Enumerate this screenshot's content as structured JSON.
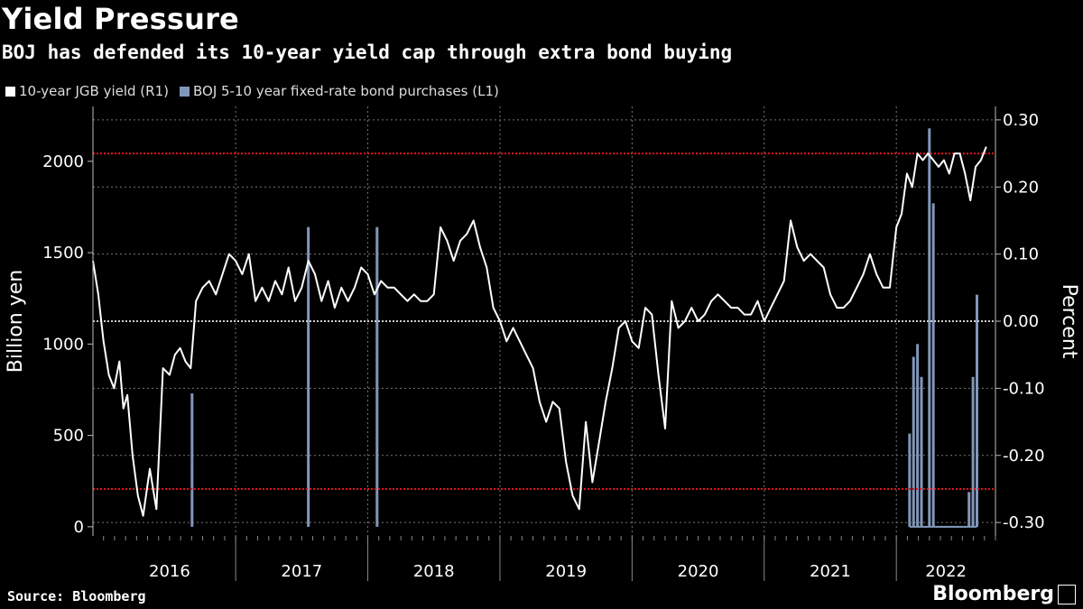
{
  "header": {
    "title": "Yield Pressure",
    "subtitle": "BOJ has defended its 10-year yield cap through extra bond buying"
  },
  "footer": {
    "source": "Source: Bloomberg",
    "brand": "Bloomberg"
  },
  "colors": {
    "background": "#000000",
    "yield_line": "#ffffff",
    "purchases_bar": "#8197b9",
    "cap_line": "#e0141e",
    "grid": "#777777"
  },
  "chart_data": {
    "type": "line",
    "legend_placement": "top-left",
    "grid": true,
    "xlabels": [
      "2016",
      "2017",
      "2018",
      "2019",
      "2020",
      "2021",
      "2022"
    ],
    "left_axis": {
      "label": "Billion yen",
      "ticks": [
        0,
        500,
        1000,
        1500,
        2000
      ],
      "range": [
        -50,
        2300
      ]
    },
    "right_axis": {
      "label": "Percent",
      "ticks": [
        "0.30",
        "0.20",
        "0.10",
        "0.00",
        "-0.10",
        "-0.20",
        "-0.30"
      ],
      "range": [
        -0.32,
        0.32
      ]
    },
    "reference_lines": [
      0.25,
      -0.25
    ],
    "series": [
      {
        "name": "10-year JGB yield (R1)",
        "axis": "right",
        "x": [
          2015.92,
          2015.96,
          2016.0,
          2016.04,
          2016.08,
          2016.12,
          2016.15,
          2016.18,
          2016.22,
          2016.26,
          2016.3,
          2016.35,
          2016.4,
          2016.45,
          2016.5,
          2016.54,
          2016.58,
          2016.62,
          2016.66,
          2016.7,
          2016.75,
          2016.8,
          2016.85,
          2016.9,
          2016.95,
          2017.0,
          2017.05,
          2017.1,
          2017.15,
          2017.2,
          2017.25,
          2017.3,
          2017.35,
          2017.4,
          2017.45,
          2017.5,
          2017.55,
          2017.6,
          2017.65,
          2017.7,
          2017.75,
          2017.8,
          2017.85,
          2017.9,
          2017.95,
          2018.0,
          2018.05,
          2018.1,
          2018.15,
          2018.2,
          2018.25,
          2018.3,
          2018.35,
          2018.4,
          2018.45,
          2018.5,
          2018.55,
          2018.6,
          2018.65,
          2018.7,
          2018.75,
          2018.8,
          2018.85,
          2018.9,
          2018.95,
          2019.0,
          2019.05,
          2019.1,
          2019.15,
          2019.2,
          2019.25,
          2019.3,
          2019.35,
          2019.4,
          2019.45,
          2019.5,
          2019.55,
          2019.6,
          2019.65,
          2019.7,
          2019.75,
          2019.8,
          2019.85,
          2019.9,
          2019.95,
          2020.0,
          2020.05,
          2020.1,
          2020.15,
          2020.2,
          2020.25,
          2020.3,
          2020.35,
          2020.4,
          2020.45,
          2020.5,
          2020.55,
          2020.6,
          2020.65,
          2020.7,
          2020.75,
          2020.8,
          2020.85,
          2020.9,
          2020.95,
          2021.0,
          2021.05,
          2021.1,
          2021.15,
          2021.2,
          2021.25,
          2021.3,
          2021.35,
          2021.4,
          2021.45,
          2021.5,
          2021.55,
          2021.6,
          2021.65,
          2021.7,
          2021.75,
          2021.8,
          2021.85,
          2021.9,
          2021.95,
          2022.0,
          2022.04,
          2022.08,
          2022.12,
          2022.16,
          2022.2,
          2022.24,
          2022.28,
          2022.32,
          2022.36,
          2022.4,
          2022.44,
          2022.48,
          2022.52,
          2022.56,
          2022.6,
          2022.64,
          2022.68
        ],
        "y": [
          0.09,
          0.04,
          -0.03,
          -0.08,
          -0.1,
          -0.06,
          -0.13,
          -0.11,
          -0.2,
          -0.26,
          -0.29,
          -0.22,
          -0.28,
          -0.07,
          -0.08,
          -0.05,
          -0.04,
          -0.06,
          -0.07,
          0.03,
          0.05,
          0.06,
          0.04,
          0.07,
          0.1,
          0.09,
          0.07,
          0.1,
          0.03,
          0.05,
          0.03,
          0.06,
          0.04,
          0.08,
          0.03,
          0.05,
          0.09,
          0.07,
          0.03,
          0.06,
          0.02,
          0.05,
          0.03,
          0.05,
          0.08,
          0.07,
          0.04,
          0.06,
          0.05,
          0.05,
          0.04,
          0.03,
          0.04,
          0.03,
          0.03,
          0.04,
          0.14,
          0.12,
          0.09,
          0.12,
          0.13,
          0.15,
          0.11,
          0.08,
          0.02,
          0.0,
          -0.03,
          -0.01,
          -0.03,
          -0.05,
          -0.07,
          -0.12,
          -0.15,
          -0.12,
          -0.13,
          -0.21,
          -0.26,
          -0.28,
          -0.15,
          -0.24,
          -0.18,
          -0.12,
          -0.07,
          -0.01,
          0.0,
          -0.03,
          -0.04,
          0.02,
          0.01,
          -0.08,
          -0.16,
          0.03,
          -0.01,
          0.0,
          0.02,
          0.0,
          0.01,
          0.03,
          0.04,
          0.03,
          0.02,
          0.02,
          0.01,
          0.01,
          0.03,
          0.0,
          0.02,
          0.04,
          0.06,
          0.15,
          0.11,
          0.09,
          0.1,
          0.09,
          0.08,
          0.04,
          0.02,
          0.02,
          0.03,
          0.05,
          0.07,
          0.1,
          0.07,
          0.05,
          0.05,
          0.14,
          0.16,
          0.22,
          0.2,
          0.25,
          0.24,
          0.25,
          0.24,
          0.23,
          0.24,
          0.22,
          0.25,
          0.25,
          0.22,
          0.18,
          0.23,
          0.24,
          0.26
        ]
      },
      {
        "name": "BOJ 5-10 year fixed-rate bond purchases (L1)",
        "axis": "left",
        "x": [
          2016.67,
          2017.55,
          2018.07,
          2022.1,
          2022.13,
          2022.16,
          2022.19,
          2022.22,
          2022.25,
          2022.28,
          2022.31,
          2022.34,
          2022.37,
          2022.4,
          2022.43,
          2022.46,
          2022.49,
          2022.52,
          2022.55,
          2022.58,
          2022.61
        ],
        "y": [
          730,
          1640,
          1640,
          510,
          930,
          1000,
          820,
          0,
          2180,
          1770,
          0,
          0,
          0,
          0,
          0,
          0,
          0,
          0,
          190,
          820,
          1270
        ]
      }
    ]
  }
}
